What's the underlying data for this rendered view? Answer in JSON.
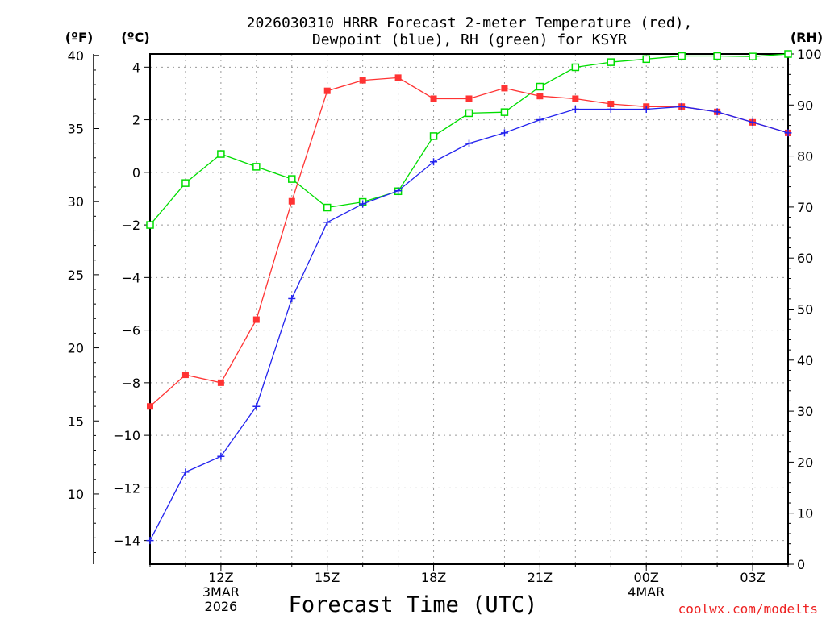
{
  "title": {
    "line1": "2026030310 HRRR Forecast 2-meter Temperature (red),",
    "line2": "Dewpoint (blue), RH (green) for KSYR"
  },
  "units": {
    "fahrenheit": "(ºF)",
    "celsius": "(ºC)",
    "rh": "(RH)"
  },
  "chart_data": {
    "type": "line",
    "title": "2026030310 HRRR Forecast 2-meter Temperature (red), Dewpoint (blue), RH (green) for KSYR",
    "xlabel": "Forecast Time (UTC)",
    "credit": "coolwx.com/modelts",
    "x_hours": [
      10,
      11,
      12,
      13,
      14,
      15,
      16,
      17,
      18,
      19,
      20,
      21,
      22,
      23,
      24,
      25,
      26,
      27,
      28
    ],
    "xlim": [
      10,
      28
    ],
    "x_ticks": [
      {
        "hour": 12,
        "lines": [
          "12Z",
          "3MAR",
          "2026"
        ]
      },
      {
        "hour": 15,
        "lines": [
          "15Z"
        ]
      },
      {
        "hour": 18,
        "lines": [
          "18Z"
        ]
      },
      {
        "hour": 21,
        "lines": [
          "21Z"
        ]
      },
      {
        "hour": 24,
        "lines": [
          "00Z",
          "4MAR"
        ]
      },
      {
        "hour": 27,
        "lines": [
          "03Z"
        ]
      }
    ],
    "y_celsius": {
      "lim": [
        -14.9,
        4.5
      ],
      "ticks": [
        -14,
        -12,
        -10,
        -8,
        -6,
        -4,
        -2,
        0,
        2,
        4
      ],
      "tick_labels": [
        "−14",
        "−12",
        "−10",
        "−8",
        "−6",
        "−4",
        "−2",
        "0",
        "2",
        "4"
      ]
    },
    "y_fahrenheit": {
      "lim": [
        5.2,
        40.1
      ],
      "ticks": [
        10,
        15,
        20,
        25,
        30,
        35,
        40
      ],
      "tick_labels": [
        "10",
        "15",
        "20",
        "25",
        "30",
        "35",
        "40"
      ]
    },
    "y_rh": {
      "lim": [
        0,
        100
      ],
      "ticks": [
        0,
        10,
        20,
        30,
        40,
        50,
        60,
        70,
        80,
        90,
        100
      ],
      "tick_labels": [
        "0",
        "10",
        "20",
        "30",
        "40",
        "50",
        "60",
        "70",
        "80",
        "90",
        "100"
      ]
    },
    "series": [
      {
        "name": "2-meter Temperature",
        "units": "C",
        "color": "#ff3333",
        "marker": "filled-square",
        "values": [
          -8.9,
          -7.7,
          -8.0,
          -5.6,
          -1.1,
          3.1,
          3.5,
          3.6,
          2.8,
          2.8,
          3.2,
          2.9,
          2.8,
          2.6,
          2.5,
          2.5,
          2.3,
          1.9,
          1.5
        ]
      },
      {
        "name": "Dewpoint",
        "units": "C",
        "color": "#2222ee",
        "marker": "plus",
        "values": [
          -14.0,
          -11.4,
          -10.8,
          -8.9,
          -4.8,
          -1.9,
          -1.2,
          -0.7,
          0.4,
          1.1,
          1.5,
          2.0,
          2.4,
          2.4,
          2.4,
          2.5,
          2.3,
          1.9,
          1.5
        ]
      },
      {
        "name": "Relative Humidity",
        "units": "%",
        "color": "#00dd00",
        "marker": "open-square",
        "values": [
          66.5,
          74.7,
          80.4,
          77.9,
          75.5,
          69.9,
          71.0,
          73.1,
          83.9,
          88.4,
          88.6,
          93.6,
          97.4,
          98.4,
          99.0,
          99.6,
          99.6,
          99.5,
          100.0
        ]
      }
    ]
  }
}
